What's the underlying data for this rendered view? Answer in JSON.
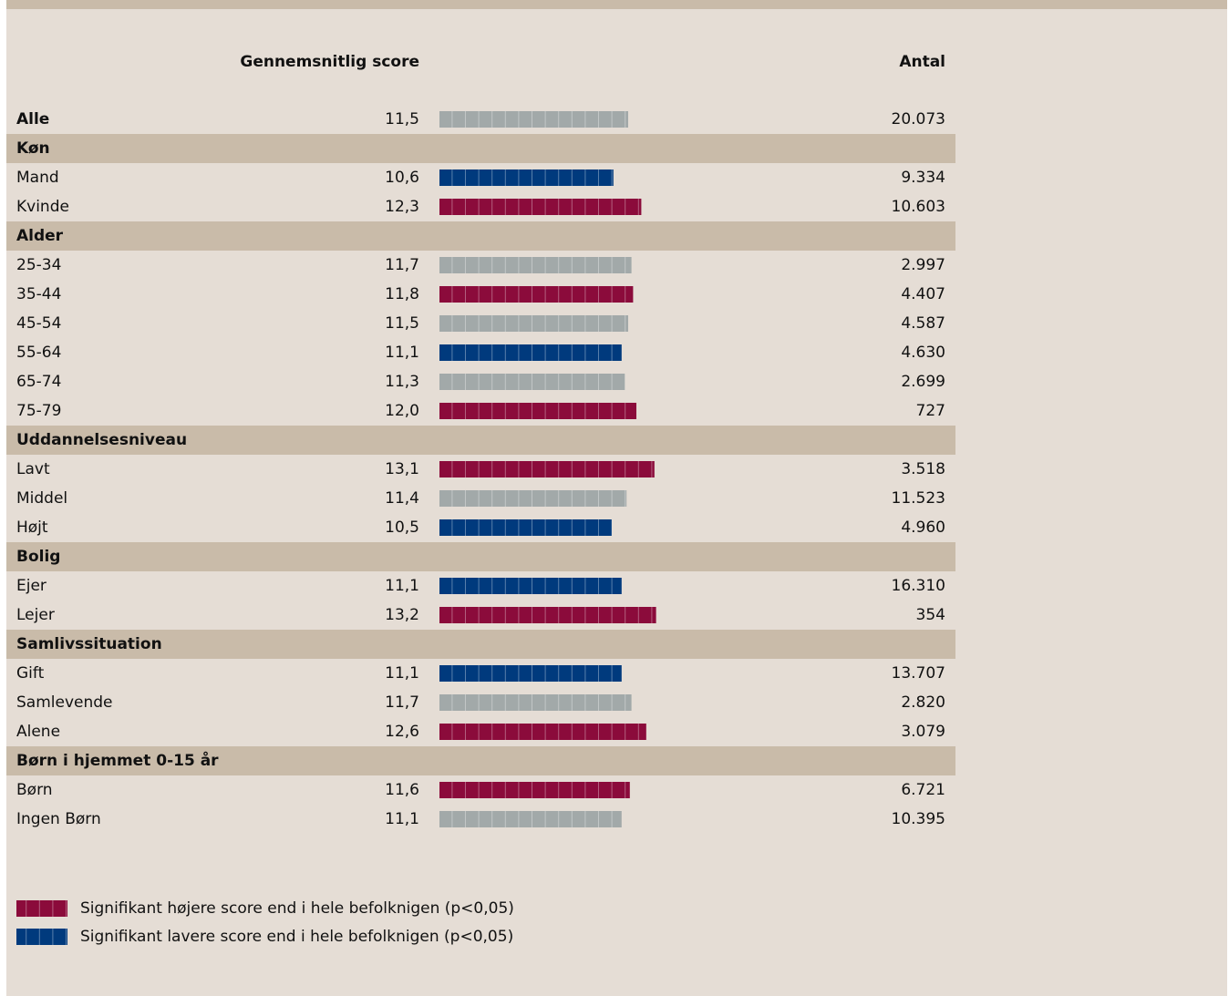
{
  "chart_data": {
    "type": "bar",
    "orientation": "horizontal",
    "column_headers": {
      "score": "Gennemsnitlig score",
      "count": "Antal"
    },
    "rows": [
      {
        "category": "Alle",
        "value": 11.5,
        "value_label": "11,5",
        "count": "20.073",
        "color": "#a2a9a9",
        "emphasis": true
      },
      {
        "group": "Køn"
      },
      {
        "category": "Mand",
        "value": 10.6,
        "value_label": "10,6",
        "count": "9.334",
        "color": "#003a7d"
      },
      {
        "category": "Kvinde",
        "value": 12.3,
        "value_label": "12,3",
        "count": "10.603",
        "color": "#8b0b3b"
      },
      {
        "group": "Alder"
      },
      {
        "category": "25-34",
        "value": 11.7,
        "value_label": "11,7",
        "count": "2.997",
        "color": "#a2a9a9"
      },
      {
        "category": "35-44",
        "value": 11.8,
        "value_label": "11,8",
        "count": "4.407",
        "color": "#8b0b3b"
      },
      {
        "category": "45-54",
        "value": 11.5,
        "value_label": "11,5",
        "count": "4.587",
        "color": "#a2a9a9"
      },
      {
        "category": "55-64",
        "value": 11.1,
        "value_label": "11,1",
        "count": "4.630",
        "color": "#003a7d"
      },
      {
        "category": "65-74",
        "value": 11.3,
        "value_label": "11,3",
        "count": "2.699",
        "color": "#a2a9a9"
      },
      {
        "category": "75-79",
        "value": 12.0,
        "value_label": "12,0",
        "count": "727",
        "color": "#8b0b3b"
      },
      {
        "group": "Uddannelsesniveau"
      },
      {
        "category": "Lavt",
        "value": 13.1,
        "value_label": "13,1",
        "count": "3.518",
        "color": "#8b0b3b"
      },
      {
        "category": "Middel",
        "value": 11.4,
        "value_label": "11,4",
        "count": "11.523",
        "color": "#a2a9a9"
      },
      {
        "category": "Højt",
        "value": 10.5,
        "value_label": "10,5",
        "count": "4.960",
        "color": "#003a7d"
      },
      {
        "group": "Bolig"
      },
      {
        "category": "Ejer",
        "value": 11.1,
        "value_label": "11,1",
        "count": "16.310",
        "color": "#003a7d"
      },
      {
        "category": "Lejer",
        "value": 13.2,
        "value_label": "13,2",
        "count": "354",
        "color": "#8b0b3b"
      },
      {
        "group": "Samlivssituation"
      },
      {
        "category": "Gift",
        "value": 11.1,
        "value_label": "11,1",
        "count": "13.707",
        "color": "#003a7d"
      },
      {
        "category": "Samlevende",
        "value": 11.7,
        "value_label": "11,7",
        "count": "2.820",
        "color": "#a2a9a9"
      },
      {
        "category": "Alene",
        "value": 12.6,
        "value_label": "12,6",
        "count": "3.079",
        "color": "#8b0b3b"
      },
      {
        "group": "Børn i hjemmet 0-15 år"
      },
      {
        "category": "Børn",
        "value": 11.6,
        "value_label": "11,6",
        "count": "6.721",
        "color": "#8b0b3b"
      },
      {
        "category": "Ingen Børn",
        "value": 11.1,
        "value_label": "11,1",
        "count": "10.395",
        "color": "#a2a9a9"
      }
    ],
    "legend": [
      {
        "label": "Signifikant højere score end i hele befolknigen (p<0,05)",
        "color": "#8b0b3b"
      },
      {
        "label": "Signifikant lavere score end i hele befolknigen (p<0,05)",
        "color": "#003a7d"
      }
    ]
  }
}
